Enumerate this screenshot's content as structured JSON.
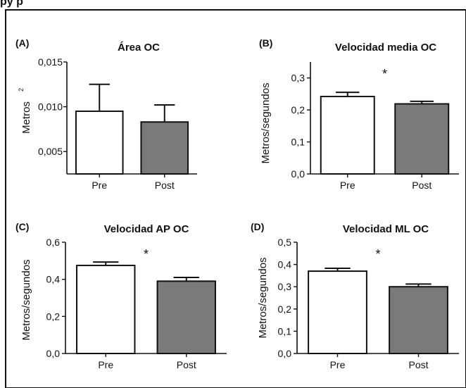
{
  "header_fragment": "py p",
  "chart_data": [
    {
      "type": "bar",
      "panel": "(A)",
      "title": "Área OC",
      "ylabel": "Metros",
      "ylabel_superscript": "2",
      "categories": [
        "Pre",
        "Post"
      ],
      "values": [
        0.0095,
        0.0083
      ],
      "errors": [
        0.003,
        0.0019
      ],
      "ylim": [
        0.0025,
        0.015
      ],
      "yticks": [
        "0,015",
        "0,010",
        "0,005"
      ],
      "ytick_values": [
        0.015,
        0.01,
        0.005
      ],
      "significance": "",
      "colors": [
        "#ffffff",
        "#7a7a7a"
      ]
    },
    {
      "type": "bar",
      "panel": "(B)",
      "title": "Velocidad media OC",
      "ylabel": "Metros/segundos",
      "categories": [
        "Pre",
        "Post"
      ],
      "values": [
        0.242,
        0.219
      ],
      "errors": [
        0.013,
        0.008
      ],
      "ylim": [
        0,
        0.35
      ],
      "yticks": [
        "0,3",
        "0,2",
        "0,1",
        "0,0"
      ],
      "ytick_values": [
        0.3,
        0.2,
        0.1,
        0.0
      ],
      "significance": "*",
      "colors": [
        "#ffffff",
        "#7a7a7a"
      ]
    },
    {
      "type": "bar",
      "panel": "(C)",
      "title": "Velocidad AP OC",
      "ylabel": "Metros/segundos",
      "categories": [
        "Pre",
        "Post"
      ],
      "values": [
        0.475,
        0.39
      ],
      "errors": [
        0.018,
        0.02
      ],
      "ylim": [
        0,
        0.6
      ],
      "yticks": [
        "0,6",
        "0,4",
        "0,2",
        "0,0"
      ],
      "ytick_values": [
        0.6,
        0.4,
        0.2,
        0.0
      ],
      "significance": "*",
      "colors": [
        "#ffffff",
        "#7a7a7a"
      ]
    },
    {
      "type": "bar",
      "panel": "(D)",
      "title": "Velocidad ML OC",
      "ylabel": "Metros/segundos",
      "categories": [
        "Pre",
        "Post"
      ],
      "values": [
        0.37,
        0.3
      ],
      "errors": [
        0.013,
        0.012
      ],
      "ylim": [
        0,
        0.5
      ],
      "yticks": [
        "0,5",
        "0,4",
        "0,3",
        "0,2",
        "0,1",
        "0,0"
      ],
      "ytick_values": [
        0.5,
        0.4,
        0.3,
        0.2,
        0.1,
        0.0
      ],
      "significance": "*",
      "colors": [
        "#ffffff",
        "#7a7a7a"
      ]
    }
  ]
}
